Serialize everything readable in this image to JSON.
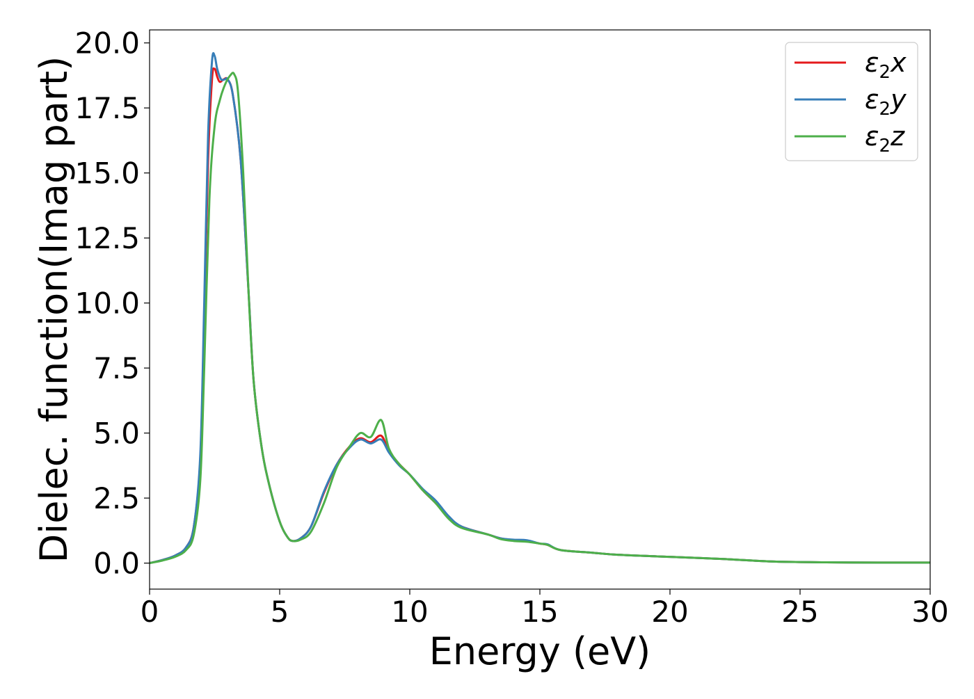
{
  "chart_data": {
    "type": "line",
    "xlabel": "Energy (eV)",
    "ylabel": "Dielec. function(Imag part)",
    "xlim": [
      0,
      30
    ],
    "ylim": [
      -1.0,
      20.5
    ],
    "x_ticks": [
      "0",
      "5",
      "10",
      "15",
      "20",
      "25",
      "30"
    ],
    "y_ticks": [
      "0.0",
      "2.5",
      "5.0",
      "7.5",
      "10.0",
      "12.5",
      "15.0",
      "17.5",
      "20.0"
    ],
    "grid": false,
    "legend_position": "top-right",
    "series": [
      {
        "name": "ε₂x",
        "legend": {
          "base": "ε",
          "sub": "2",
          "axis": "x"
        },
        "color": "#e41a1c",
        "points": [
          [
            0,
            0.0
          ],
          [
            0.5,
            0.12
          ],
          [
            1.0,
            0.3
          ],
          [
            1.4,
            0.6
          ],
          [
            1.7,
            1.4
          ],
          [
            1.95,
            4.0
          ],
          [
            2.1,
            9.5
          ],
          [
            2.25,
            15.5
          ],
          [
            2.4,
            18.6
          ],
          [
            2.5,
            19.0
          ],
          [
            2.6,
            18.7
          ],
          [
            2.7,
            18.5
          ],
          [
            2.85,
            18.6
          ],
          [
            3.0,
            18.6
          ],
          [
            3.2,
            18.0
          ],
          [
            3.5,
            15.5
          ],
          [
            3.8,
            10.5
          ],
          [
            4.0,
            7.0
          ],
          [
            4.3,
            4.5
          ],
          [
            4.6,
            3.0
          ],
          [
            5.0,
            1.6
          ],
          [
            5.3,
            1.0
          ],
          [
            5.5,
            0.85
          ],
          [
            5.8,
            0.95
          ],
          [
            6.2,
            1.4
          ],
          [
            6.7,
            2.7
          ],
          [
            7.2,
            3.8
          ],
          [
            7.7,
            4.5
          ],
          [
            8.1,
            4.8
          ],
          [
            8.5,
            4.65
          ],
          [
            8.9,
            4.9
          ],
          [
            9.2,
            4.3
          ],
          [
            9.6,
            3.8
          ],
          [
            10.0,
            3.4
          ],
          [
            10.5,
            2.8
          ],
          [
            11.0,
            2.3
          ],
          [
            11.5,
            1.75
          ],
          [
            12.0,
            1.4
          ],
          [
            13.0,
            1.1
          ],
          [
            13.5,
            0.95
          ],
          [
            14.0,
            0.88
          ],
          [
            14.5,
            0.85
          ],
          [
            15.0,
            0.75
          ],
          [
            15.3,
            0.7
          ],
          [
            15.8,
            0.5
          ],
          [
            17,
            0.4
          ],
          [
            18,
            0.32
          ],
          [
            20,
            0.24
          ],
          [
            22,
            0.16
          ],
          [
            24,
            0.06
          ],
          [
            26,
            0.03
          ],
          [
            28,
            0.02
          ],
          [
            30,
            0.02
          ]
        ]
      },
      {
        "name": "ε₂y",
        "legend": {
          "base": "ε",
          "sub": "2",
          "axis": "y"
        },
        "color": "#377eb8",
        "points": [
          [
            0,
            0.0
          ],
          [
            0.5,
            0.12
          ],
          [
            1.0,
            0.3
          ],
          [
            1.4,
            0.6
          ],
          [
            1.7,
            1.4
          ],
          [
            1.95,
            4.2
          ],
          [
            2.1,
            10.0
          ],
          [
            2.25,
            16.5
          ],
          [
            2.4,
            19.3
          ],
          [
            2.5,
            19.5
          ],
          [
            2.6,
            19.0
          ],
          [
            2.75,
            18.6
          ],
          [
            2.9,
            18.6
          ],
          [
            3.0,
            18.6
          ],
          [
            3.2,
            18.0
          ],
          [
            3.5,
            15.5
          ],
          [
            3.8,
            10.5
          ],
          [
            4.0,
            7.0
          ],
          [
            4.3,
            4.5
          ],
          [
            4.6,
            3.0
          ],
          [
            5.0,
            1.6
          ],
          [
            5.3,
            1.0
          ],
          [
            5.5,
            0.85
          ],
          [
            5.8,
            0.95
          ],
          [
            6.2,
            1.4
          ],
          [
            6.7,
            2.75
          ],
          [
            7.2,
            3.8
          ],
          [
            7.7,
            4.45
          ],
          [
            8.1,
            4.75
          ],
          [
            8.5,
            4.6
          ],
          [
            8.9,
            4.75
          ],
          [
            9.2,
            4.25
          ],
          [
            9.6,
            3.75
          ],
          [
            10.0,
            3.4
          ],
          [
            10.5,
            2.85
          ],
          [
            11.0,
            2.4
          ],
          [
            11.5,
            1.8
          ],
          [
            12.0,
            1.4
          ],
          [
            13.0,
            1.1
          ],
          [
            13.5,
            0.95
          ],
          [
            14.0,
            0.9
          ],
          [
            14.5,
            0.88
          ],
          [
            15.0,
            0.75
          ],
          [
            15.3,
            0.72
          ],
          [
            15.8,
            0.5
          ],
          [
            17,
            0.4
          ],
          [
            18,
            0.32
          ],
          [
            20,
            0.24
          ],
          [
            22,
            0.16
          ],
          [
            24,
            0.06
          ],
          [
            26,
            0.03
          ],
          [
            28,
            0.02
          ],
          [
            30,
            0.02
          ]
        ]
      },
      {
        "name": "ε₂z",
        "legend": {
          "base": "ε",
          "sub": "2",
          "axis": "z"
        },
        "color": "#4daf4a",
        "points": [
          [
            0,
            0.0
          ],
          [
            0.5,
            0.1
          ],
          [
            1.0,
            0.25
          ],
          [
            1.4,
            0.5
          ],
          [
            1.7,
            1.1
          ],
          [
            1.95,
            3.2
          ],
          [
            2.1,
            7.5
          ],
          [
            2.3,
            14.0
          ],
          [
            2.5,
            16.8
          ],
          [
            2.7,
            17.8
          ],
          [
            2.9,
            18.4
          ],
          [
            3.1,
            18.75
          ],
          [
            3.25,
            18.8
          ],
          [
            3.4,
            18.1
          ],
          [
            3.6,
            15.0
          ],
          [
            3.8,
            10.5
          ],
          [
            4.0,
            7.0
          ],
          [
            4.3,
            4.5
          ],
          [
            4.6,
            3.0
          ],
          [
            5.0,
            1.6
          ],
          [
            5.3,
            1.0
          ],
          [
            5.5,
            0.85
          ],
          [
            5.8,
            0.9
          ],
          [
            6.2,
            1.2
          ],
          [
            6.7,
            2.3
          ],
          [
            7.2,
            3.7
          ],
          [
            7.7,
            4.5
          ],
          [
            8.1,
            5.0
          ],
          [
            8.5,
            4.85
          ],
          [
            8.9,
            5.5
          ],
          [
            9.2,
            4.4
          ],
          [
            9.6,
            3.8
          ],
          [
            10.0,
            3.4
          ],
          [
            10.5,
            2.8
          ],
          [
            11.0,
            2.3
          ],
          [
            11.5,
            1.7
          ],
          [
            12.0,
            1.35
          ],
          [
            13.0,
            1.1
          ],
          [
            13.5,
            0.92
          ],
          [
            14.0,
            0.85
          ],
          [
            14.5,
            0.82
          ],
          [
            15.0,
            0.75
          ],
          [
            15.3,
            0.7
          ],
          [
            15.8,
            0.5
          ],
          [
            17,
            0.4
          ],
          [
            18,
            0.32
          ],
          [
            20,
            0.24
          ],
          [
            22,
            0.16
          ],
          [
            24,
            0.06
          ],
          [
            26,
            0.03
          ],
          [
            28,
            0.02
          ],
          [
            30,
            0.02
          ]
        ]
      }
    ]
  }
}
